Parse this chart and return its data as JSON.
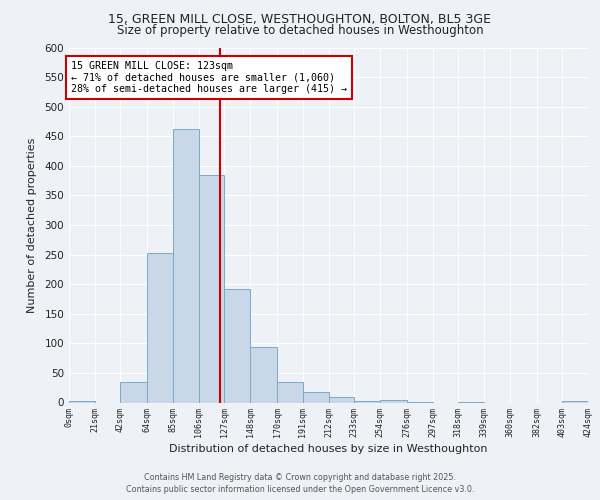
{
  "title_line1": "15, GREEN MILL CLOSE, WESTHOUGHTON, BOLTON, BL5 3GE",
  "title_line2": "Size of property relative to detached houses in Westhoughton",
  "xlabel": "Distribution of detached houses by size in Westhoughton",
  "ylabel": "Number of detached properties",
  "bin_edges": [
    0,
    21,
    42,
    64,
    85,
    106,
    127,
    148,
    170,
    191,
    212,
    233,
    254,
    276,
    297,
    318,
    339,
    360,
    382,
    403,
    424
  ],
  "bar_heights": [
    2,
    0,
    35,
    253,
    462,
    385,
    191,
    93,
    35,
    18,
    10,
    3,
    5,
    1,
    0,
    1,
    0,
    0,
    0,
    3
  ],
  "bar_color": "#c8d8e8",
  "bar_edge_color": "#7aaac8",
  "property_size": 123,
  "vline_color": "#cc0000",
  "annotation_line1": "15 GREEN MILL CLOSE: 123sqm",
  "annotation_line2": "← 71% of detached houses are smaller (1,060)",
  "annotation_line3": "28% of semi-detached houses are larger (415) →",
  "annotation_box_edge": "#cc0000",
  "ylim": [
    0,
    600
  ],
  "yticks": [
    0,
    50,
    100,
    150,
    200,
    250,
    300,
    350,
    400,
    450,
    500,
    550,
    600
  ],
  "footer_text": "Contains HM Land Registry data © Crown copyright and database right 2025.\nContains public sector information licensed under the Open Government Licence v3.0.",
  "bg_color": "#eef2f7",
  "grid_color": "#ffffff"
}
